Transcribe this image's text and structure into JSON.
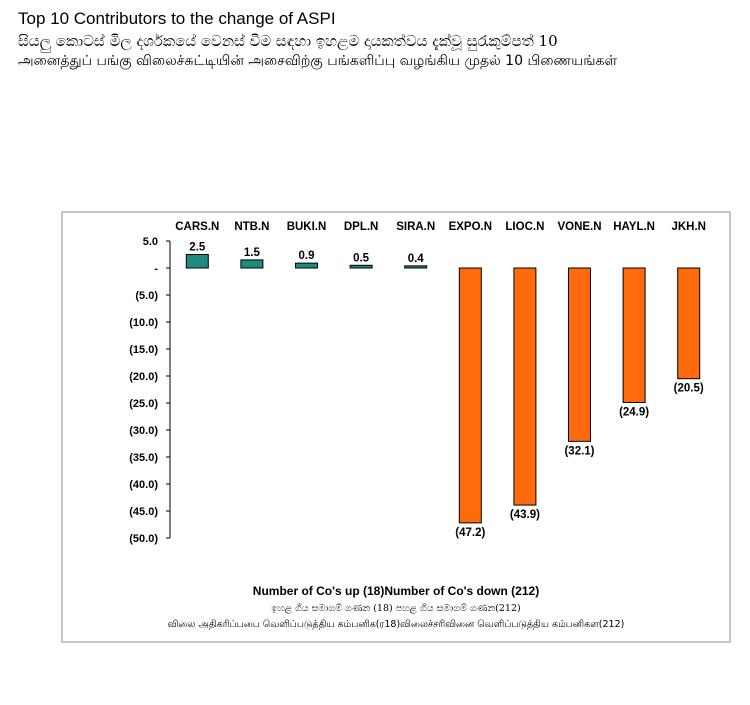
{
  "heading": {
    "title_en": "Top 10 Contributors to the change of ASPI",
    "title_si": "සියලු කොටස් මිල දර්ශකයේ වෙනස් වීම සඳහා ඉහළම දායකත්වය දැක්වූ සුරැකුම්පත් 10",
    "title_ta": "அனைத்துப் பங்கு விலைச்சுட்டியின் அசைவிற்கு பங்களிப்பு வழங்கிய முதல் 10 பிணையங்கள்"
  },
  "footer": {
    "en": "Number of Co's up (18)Number of Co's down  (212)",
    "si": "ඉහළ ගිය සමාගම් ගණන (18) පහළ ගිය සමාගම් ගණන(212)",
    "ta": "விலை  அதிகரிப்பபை  வெளிப்படுத்திய  கம்பனிக(ர18)விலைச்சரிவினை  வெளிப்படுத்திய  கம்பனிகள(212)"
  },
  "chart_data": {
    "type": "bar",
    "categories": [
      "CARS.N",
      "NTB.N",
      "BUKI.N",
      "DPL.N",
      "SIRA.N",
      "EXPO.N",
      "LIOC.N",
      "VONE.N",
      "HAYL.N",
      "JKH.N"
    ],
    "values": [
      2.5,
      1.5,
      0.9,
      0.5,
      0.4,
      -47.2,
      -43.9,
      -32.1,
      -24.9,
      -20.5
    ],
    "data_labels": [
      "2.5",
      "1.5",
      "0.9",
      "0.5",
      "0.4",
      "(47.2)",
      "(43.9)",
      "(32.1)",
      "(24.9)",
      "(20.5)"
    ],
    "yticks": [
      5,
      0,
      -5,
      -10,
      -15,
      -20,
      -25,
      -30,
      -35,
      -40,
      -45,
      -50
    ],
    "ytick_labels": [
      "5.0",
      "-",
      "(5.0)",
      "(10.0)",
      "(15.0)",
      "(20.0)",
      "(25.0)",
      "(30.0)",
      "(35.0)",
      "(40.0)",
      "(45.0)",
      "(50.0)"
    ],
    "ylim": [
      -50,
      5
    ],
    "category_axis_position": "top",
    "grid": false,
    "colors": {
      "positive": "#1f8a80",
      "negative": "#ff6a0d",
      "outline": "#000000",
      "frame": "#8c8c8c"
    }
  }
}
